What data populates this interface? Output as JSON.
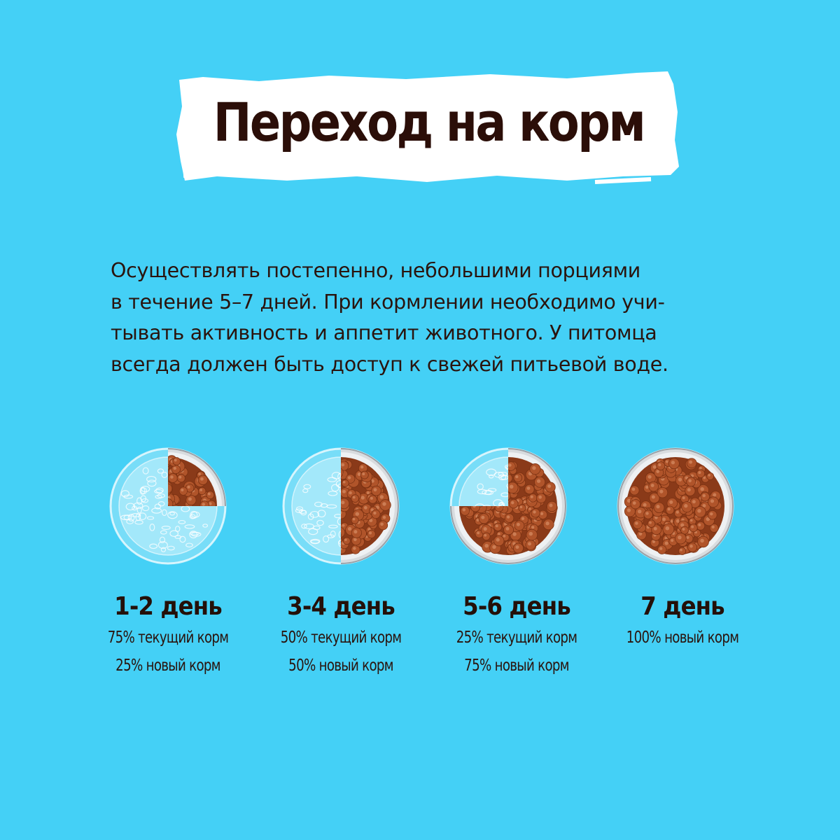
{
  "title": "Переход на корм",
  "intro_lines": [
    "Осуществлять постепенно, небольшими порциями",
    "в течение 5–7 дней. При кормлении необходимо учи-",
    "тывать активность и аппетит животного. У питомца",
    "всегда должен быть доступ к свежей питьевой воде."
  ],
  "steps": [
    {
      "day": "1-2 день",
      "line1": "75% текущий корм",
      "line2": "25% новый корм",
      "new_food_fraction": 0.25
    },
    {
      "day": "3-4 день",
      "line1": "50% текущий корм",
      "line2": "50% новый корм",
      "new_food_fraction": 0.5
    },
    {
      "day": "5-6 день",
      "line1": "25% текущий корм",
      "line2": "75% новый корм",
      "new_food_fraction": 0.75
    },
    {
      "day": "7 день",
      "line1": "100% новый корм",
      "line2": "",
      "new_food_fraction": 1.0
    }
  ],
  "colors": {
    "background": "#44d0f6",
    "title_text": "#2b0e08",
    "kibble": "#b0542a",
    "kibble_dark": "#8a3a19",
    "bowl_rim": "#d8dcdf"
  }
}
